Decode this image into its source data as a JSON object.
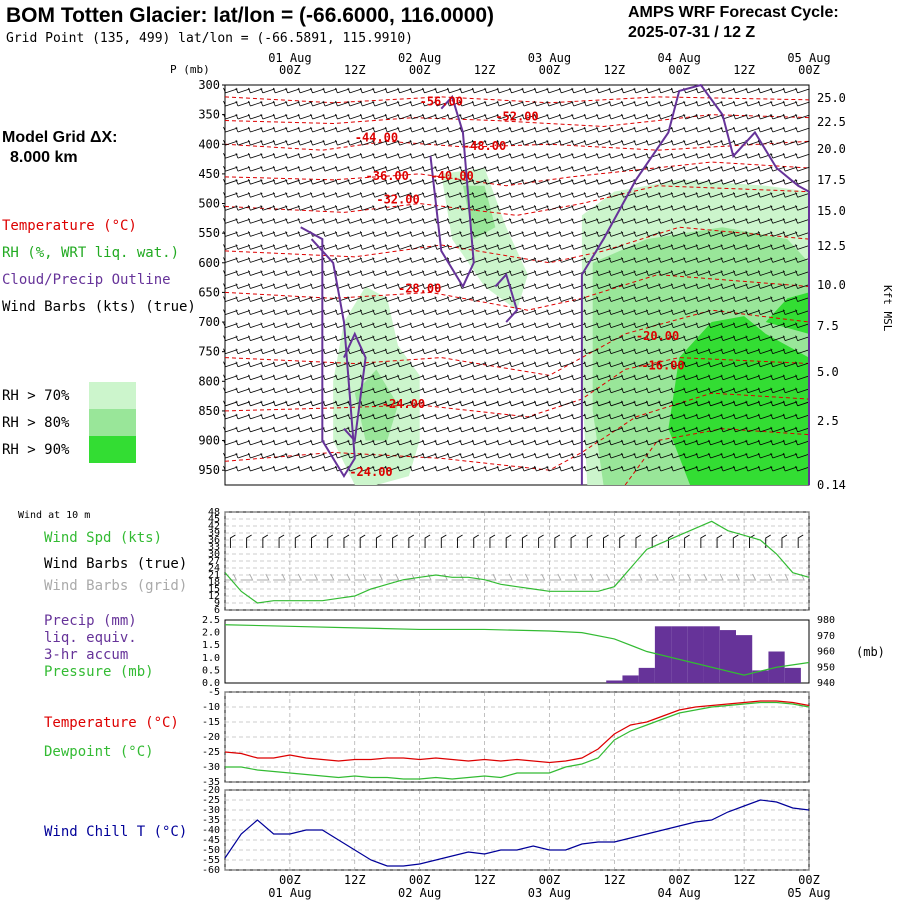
{
  "header": {
    "title": "BOM Totten Glacier:  lat/lon = (-66.6000, 116.0000)",
    "subtitle": "Grid Point (135, 499) lat/lon = (-66.5891, 115.9910)",
    "cycle_line1": "AMPS WRF Forecast Cycle:",
    "cycle_line2": "2025-07-31 / 12  Z"
  },
  "model_grid": {
    "line1": "Model Grid ΔX:",
    "line2": "8.000 km"
  },
  "legend": {
    "temperature": "Temperature (°C)",
    "rh": "RH (%, WRT liq. wat.)",
    "cloud": "Cloud/Precip Outline",
    "wind": "Wind Barbs (kts) (true)",
    "rh70": "RH > 70%",
    "rh80": "RH > 80%",
    "rh90": "RH > 90%"
  },
  "colors": {
    "temperature": "#dd0000",
    "cloud": "#663399",
    "wind": "#000000",
    "rh70": "#ccf5cc",
    "rh80": "#99e699",
    "rh90": "#33dd33",
    "speed": "#33bb33",
    "grid_barb": "#aaaaaa",
    "precip": "#663399",
    "windchill": "#000099"
  },
  "time_axis": {
    "hour_labels": [
      "00Z",
      "12Z",
      "00Z",
      "12Z",
      "00Z",
      "12Z",
      "00Z",
      "12Z",
      "00Z",
      "12Z"
    ],
    "date_labels": [
      "01 Aug",
      "02 Aug",
      "03 Aug",
      "04 Aug",
      "05 Aug"
    ]
  },
  "chart_data": [
    {
      "type": "line",
      "panel": "cross-section",
      "ylabel": "P (mb)",
      "ylabel_right": "Kft MSL",
      "y_pressure_ticks": [
        "300",
        "350",
        "400",
        "450",
        "500",
        "550",
        "600",
        "650",
        "700",
        "750",
        "800",
        "850",
        "900",
        "950"
      ],
      "y_height_ticks": [
        "25.0",
        "22.5",
        "20.0",
        "17.5",
        "15.0",
        "12.5",
        "10.0",
        "7.5",
        "5.0",
        "2.5",
        "0.14"
      ],
      "x_range_hours": [
        0,
        108
      ],
      "temperature_contour_labels": [
        {
          "label": "-56.00",
          "t": 40,
          "p": 335
        },
        {
          "label": "-52.00",
          "t": 54,
          "p": 360
        },
        {
          "label": "-48.00",
          "t": 48,
          "p": 410
        },
        {
          "label": "-44.00",
          "t": 28,
          "p": 395
        },
        {
          "label": "-40.00",
          "t": 42,
          "p": 460
        },
        {
          "label": "-36.00",
          "t": 30,
          "p": 460
        },
        {
          "label": "-32.00",
          "t": 32,
          "p": 500
        },
        {
          "label": "-28.00",
          "t": 36,
          "p": 650
        },
        {
          "label": "-24.00",
          "t": 33,
          "p": 845
        },
        {
          "label": "-24.00",
          "t": 27,
          "p": 960
        },
        {
          "label": "-20.00",
          "t": 80,
          "p": 730
        },
        {
          "label": "-16.00",
          "t": 81,
          "p": 780
        }
      ]
    },
    {
      "type": "line",
      "panel": "wind at 10 m",
      "title": "Wind at 10 m",
      "series": [
        {
          "name": "Wind Spd (kts)",
          "x": [
            0,
            3,
            6,
            9,
            12,
            15,
            18,
            21,
            24,
            27,
            30,
            33,
            36,
            39,
            42,
            45,
            48,
            51,
            54,
            57,
            60,
            63,
            66,
            69,
            72,
            75,
            78,
            81,
            84,
            87,
            90,
            93,
            96,
            99,
            102,
            105,
            108
          ],
          "values": [
            22,
            14,
            9,
            10,
            10,
            10,
            10,
            11,
            12,
            15,
            17,
            19,
            20,
            21,
            20,
            20,
            19,
            17,
            16,
            15,
            14,
            14,
            14,
            14,
            16,
            24,
            32,
            35,
            38,
            41,
            44,
            40,
            38,
            36,
            30,
            22,
            20
          ]
        }
      ],
      "ylim": [
        6,
        48
      ],
      "y_ticks": [
        "48",
        "45",
        "42",
        "39",
        "36",
        "33",
        "30",
        "27",
        "24",
        "21",
        "18",
        "15",
        "12",
        "9",
        "6"
      ]
    },
    {
      "type": "bar",
      "panel": "precip/pressure",
      "series": [
        {
          "name": "Precip (mm) liq. equiv. 3-hr accum",
          "x": [
            72,
            75,
            78,
            81,
            84,
            87,
            90,
            93,
            96,
            99,
            102,
            105
          ],
          "values": [
            0.1,
            0.3,
            0.6,
            2.25,
            2.25,
            2.25,
            2.25,
            2.1,
            1.9,
            0.5,
            1.25,
            0.6
          ]
        },
        {
          "name": "Pressure (mb)",
          "x": [
            0,
            12,
            24,
            36,
            48,
            60,
            66,
            72,
            78,
            84,
            90,
            96,
            102,
            108
          ],
          "values": [
            977,
            976,
            975,
            974,
            974,
            973,
            972,
            968,
            960,
            955,
            950,
            945,
            950,
            953
          ]
        }
      ],
      "precip_ticks": [
        "2.5",
        "2.0",
        "1.5",
        "1.0",
        "0.5",
        "0.0"
      ],
      "pressure_ticks": [
        "980",
        "970",
        "960",
        "950",
        "940"
      ],
      "pressure_unit": "(mb)"
    },
    {
      "type": "line",
      "panel": "temperature/dewpoint",
      "series": [
        {
          "name": "Temperature (°C)",
          "x": [
            0,
            3,
            6,
            9,
            12,
            15,
            18,
            21,
            24,
            27,
            30,
            33,
            36,
            39,
            42,
            45,
            48,
            51,
            54,
            57,
            60,
            63,
            66,
            69,
            72,
            75,
            78,
            81,
            84,
            87,
            90,
            93,
            96,
            99,
            102,
            105,
            108
          ],
          "values": [
            -25,
            -25.5,
            -27,
            -27,
            -26,
            -27,
            -27.5,
            -28,
            -27.5,
            -27.5,
            -27,
            -27,
            -27.5,
            -27,
            -27.5,
            -28,
            -27.5,
            -28,
            -27.5,
            -28,
            -28.5,
            -28,
            -27,
            -24,
            -19,
            -16,
            -15,
            -13,
            -11,
            -10,
            -9.5,
            -9,
            -8.5,
            -8,
            -8,
            -8.5,
            -9.5
          ]
        },
        {
          "name": "Dewpoint (°C)",
          "x": [
            0,
            3,
            6,
            9,
            12,
            15,
            18,
            21,
            24,
            27,
            30,
            33,
            36,
            39,
            42,
            45,
            48,
            51,
            54,
            57,
            60,
            63,
            66,
            69,
            72,
            75,
            78,
            81,
            84,
            87,
            90,
            93,
            96,
            99,
            102,
            105,
            108
          ],
          "values": [
            -30,
            -30,
            -31,
            -31.5,
            -32,
            -32.5,
            -33,
            -33.5,
            -33,
            -33.5,
            -33.5,
            -34,
            -34,
            -33.5,
            -34,
            -33.5,
            -33,
            -33.5,
            -32,
            -32,
            -32,
            -30,
            -29,
            -27,
            -21,
            -18,
            -16,
            -14,
            -12,
            -11,
            -10,
            -9.5,
            -9,
            -8.5,
            -8.5,
            -9,
            -10
          ]
        }
      ],
      "y_ticks": [
        "-5",
        "-10",
        "-15",
        "-20",
        "-25",
        "-30",
        "-35"
      ],
      "ylim": [
        -35,
        -5
      ]
    },
    {
      "type": "line",
      "panel": "wind chill",
      "series": [
        {
          "name": "Wind Chill T (°C)",
          "x": [
            0,
            3,
            6,
            9,
            12,
            15,
            18,
            21,
            24,
            27,
            30,
            33,
            36,
            39,
            42,
            45,
            48,
            51,
            54,
            57,
            60,
            63,
            66,
            69,
            72,
            75,
            78,
            81,
            84,
            87,
            90,
            93,
            96,
            99,
            102,
            105,
            108
          ],
          "values": [
            -54,
            -42,
            -35,
            -42,
            -42,
            -40,
            -40,
            -45,
            -50,
            -55,
            -58,
            -58,
            -57,
            -55,
            -53,
            -51,
            -52,
            -50,
            -50,
            -48,
            -50,
            -50,
            -47,
            -46,
            -46,
            -44,
            -42,
            -40,
            -38,
            -36,
            -35,
            -31,
            -28,
            -25,
            -26,
            -29,
            -30
          ]
        }
      ],
      "y_ticks": [
        "-20",
        "-25",
        "-30",
        "-35",
        "-40",
        "-45",
        "-50",
        "-55",
        "-60"
      ],
      "ylim": [
        -60,
        -20
      ]
    }
  ],
  "lower_panels": {
    "wind_title": "Wind at 10 m",
    "wind_spd": "Wind Spd (kts)",
    "wind_true": "Wind Barbs (true)",
    "wind_grid": "Wind Barbs (grid)",
    "precip_l1": "Precip (mm)",
    "precip_l2": "liq. equiv.",
    "precip_l3": "3-hr accum",
    "pressure": "Pressure (mb)",
    "temperature": "Temperature (°C)",
    "dewpoint": "Dewpoint (°C)",
    "windchill": "Wind Chill T (°C)"
  }
}
